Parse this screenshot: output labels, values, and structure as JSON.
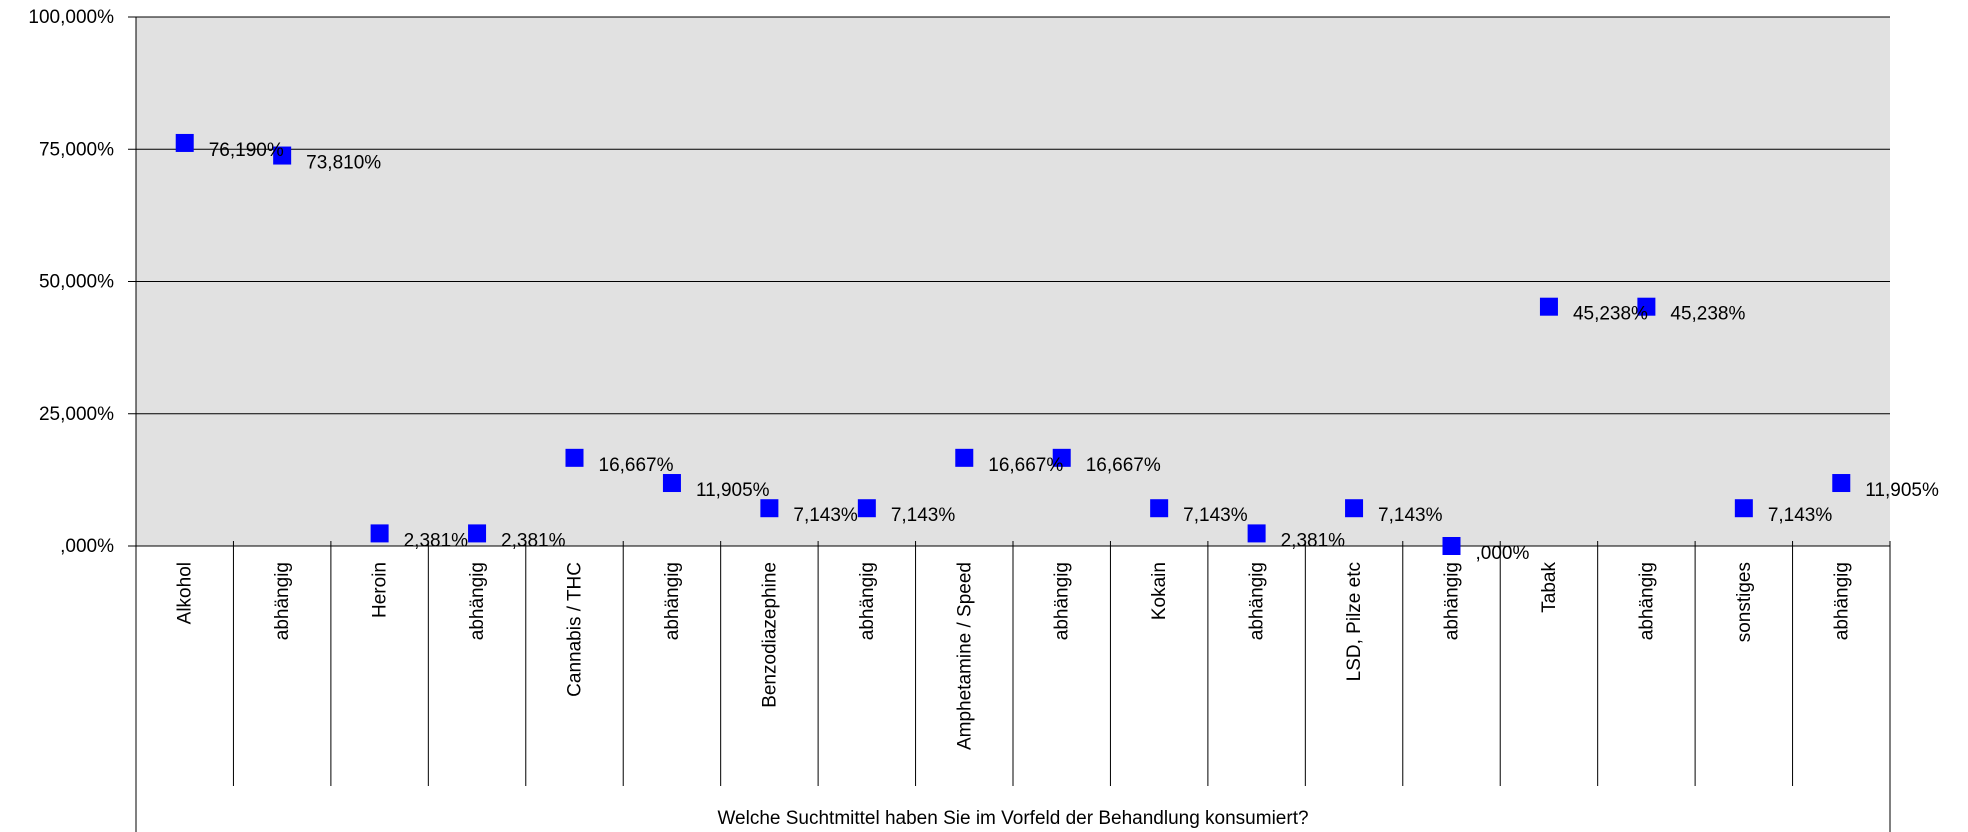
{
  "chart_data": {
    "type": "scatter",
    "xlabel": "Welche Suchtmittel haben Sie im Vorfeld der Behandlung konsumiert?",
    "ylabel": "",
    "ylim": [
      0,
      100
    ],
    "yticks": [
      0,
      25,
      50,
      75,
      100
    ],
    "ytick_labels": [
      ",000%",
      "25,000%",
      "50,000%",
      "75,000%",
      "100,000%"
    ],
    "grid": true,
    "marker": "square",
    "colors": {
      "plot_background": "#e1e1e1",
      "marker": "#0000ff",
      "grid": "#000000"
    },
    "categories": [
      "Alkohol",
      "abhängig",
      "Heroin",
      "abhängig",
      "Cannabis / THC",
      "abhängig",
      "Benzodiazephine",
      "abhängig",
      "Amphetamine / Speed",
      "abhängig",
      "Kokain",
      "abhängig",
      "LSD, Pilze etc",
      "abhängig",
      "Tabak",
      "abhängig",
      "sonstiges",
      "abhängig"
    ],
    "values": [
      76.19,
      73.81,
      2.381,
      2.381,
      16.667,
      11.905,
      7.143,
      7.143,
      16.667,
      16.667,
      7.143,
      2.381,
      7.143,
      0.0,
      45.238,
      45.238,
      7.143,
      11.905
    ],
    "data_labels": [
      "76,190%",
      "73,810%",
      "2,381%",
      "2,381%",
      "16,667%",
      "11,905%",
      "7,143%",
      "7,143%",
      "16,667%",
      "16,667%",
      "7,143%",
      "2,381%",
      "7,143%",
      ",000%",
      "45,238%",
      "45,238%",
      "7,143%",
      "11,905%"
    ]
  }
}
